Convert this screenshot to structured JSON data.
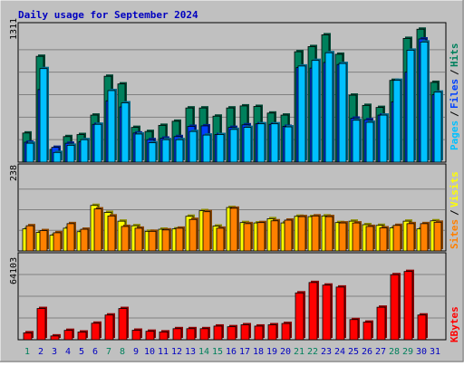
{
  "title": "Daily usage for September 2024",
  "colors": {
    "frame": "#c0c0c0",
    "panel_bg": "#c0c0c0",
    "title": "#0000c0",
    "hits": "#00805c",
    "files": "#0040ff",
    "pages": "#00c0ff",
    "visits": "#ffff00",
    "sites": "#ff8000",
    "kbytes": "#ff0000",
    "weekend_day": "#00805c",
    "weekday_day": "#0000c0"
  },
  "chart_data": [
    {
      "type": "bar",
      "name": "hits-files-pages",
      "ymax_label": "1311",
      "ymax": 1311,
      "legend": [
        "Pages",
        "Files",
        "Hits"
      ],
      "x": [
        1,
        2,
        3,
        4,
        5,
        6,
        7,
        8,
        9,
        10,
        11,
        12,
        13,
        14,
        15,
        16,
        17,
        18,
        19,
        20,
        21,
        22,
        23,
        24,
        25,
        26,
        27,
        28,
        29,
        30,
        31
      ],
      "series": [
        {
          "name": "Hits",
          "values": [
            285,
            1035,
            125,
            250,
            270,
            460,
            840,
            765,
            340,
            300,
            360,
            400,
            530,
            530,
            450,
            530,
            550,
            545,
            480,
            460,
            1080,
            1130,
            1245,
            1055,
            655,
            555,
            535,
            800,
            1210,
            1300,
            780
          ]
        },
        {
          "name": "Files",
          "values": [
            195,
            710,
            145,
            185,
            200,
            370,
            600,
            540,
            285,
            220,
            235,
            250,
            350,
            355,
            270,
            340,
            365,
            375,
            370,
            350,
            925,
            920,
            975,
            955,
            430,
            415,
            460,
            590,
            880,
            1205,
            660
          ]
        },
        {
          "name": "Pages",
          "values": [
            185,
            915,
            95,
            165,
            220,
            370,
            700,
            580,
            275,
            190,
            220,
            220,
            300,
            265,
            270,
            320,
            340,
            375,
            375,
            345,
            940,
            995,
            1070,
            965,
            410,
            390,
            460,
            800,
            1095,
            1175,
            685
          ]
        }
      ]
    },
    {
      "type": "bar",
      "name": "visits-sites",
      "ymax_label": "238",
      "ymax": 238,
      "legend": [
        "Sites",
        "Visits"
      ],
      "x": [
        1,
        2,
        3,
        4,
        5,
        6,
        7,
        8,
        9,
        10,
        11,
        12,
        13,
        14,
        15,
        16,
        17,
        18,
        19,
        20,
        21,
        22,
        23,
        24,
        25,
        26,
        27,
        28,
        29,
        30,
        31
      ],
      "series": [
        {
          "name": "Visits",
          "values": [
            63,
            53,
            45,
            65,
            55,
            130,
            110,
            85,
            72,
            56,
            62,
            63,
            99,
            115,
            71,
            124,
            81,
            80,
            92,
            80,
            99,
            98,
            100,
            81,
            85,
            75,
            73,
            66,
            85,
            63,
            86
          ]
        },
        {
          "name": "Sites",
          "values": [
            72,
            58,
            52,
            78,
            62,
            120,
            100,
            70,
            65,
            56,
            60,
            65,
            90,
            112,
            65,
            122,
            78,
            81,
            86,
            88,
            98,
            100,
            98,
            80,
            80,
            70,
            66,
            73,
            78,
            78,
            82
          ]
        }
      ]
    },
    {
      "type": "bar",
      "name": "kbytes",
      "ymax_label": "64103",
      "ymax": 64103,
      "legend": [
        "KBytes"
      ],
      "x": [
        1,
        2,
        3,
        4,
        5,
        6,
        7,
        8,
        9,
        10,
        11,
        12,
        13,
        14,
        15,
        16,
        17,
        18,
        19,
        20,
        21,
        22,
        23,
        24,
        25,
        26,
        27,
        28,
        29,
        30,
        31
      ],
      "series": [
        {
          "name": "KBytes",
          "values": [
            5300,
            24000,
            2900,
            7200,
            5900,
            12700,
            19000,
            24000,
            7300,
            6500,
            6000,
            8500,
            8500,
            8500,
            10500,
            10000,
            11500,
            10500,
            11500,
            12500,
            36000,
            44000,
            42000,
            40500,
            15500,
            13500,
            25000,
            50000,
            52500,
            19000,
            0
          ]
        }
      ]
    }
  ],
  "days": [
    {
      "label": "1",
      "weekend": true
    },
    {
      "label": "2",
      "weekend": false
    },
    {
      "label": "3",
      "weekend": false
    },
    {
      "label": "4",
      "weekend": false
    },
    {
      "label": "5",
      "weekend": false
    },
    {
      "label": "6",
      "weekend": false
    },
    {
      "label": "7",
      "weekend": true
    },
    {
      "label": "8",
      "weekend": true
    },
    {
      "label": "9",
      "weekend": false
    },
    {
      "label": "10",
      "weekend": false
    },
    {
      "label": "11",
      "weekend": false
    },
    {
      "label": "12",
      "weekend": false
    },
    {
      "label": "13",
      "weekend": false
    },
    {
      "label": "14",
      "weekend": true
    },
    {
      "label": "15",
      "weekend": true
    },
    {
      "label": "16",
      "weekend": false
    },
    {
      "label": "17",
      "weekend": false
    },
    {
      "label": "18",
      "weekend": false
    },
    {
      "label": "19",
      "weekend": false
    },
    {
      "label": "20",
      "weekend": false
    },
    {
      "label": "21",
      "weekend": true
    },
    {
      "label": "22",
      "weekend": true
    },
    {
      "label": "23",
      "weekend": false
    },
    {
      "label": "24",
      "weekend": false
    },
    {
      "label": "25",
      "weekend": false
    },
    {
      "label": "26",
      "weekend": false
    },
    {
      "label": "27",
      "weekend": false
    },
    {
      "label": "28",
      "weekend": true
    },
    {
      "label": "29",
      "weekend": true
    },
    {
      "label": "30",
      "weekend": false
    },
    {
      "label": "31",
      "weekend": false
    }
  ]
}
